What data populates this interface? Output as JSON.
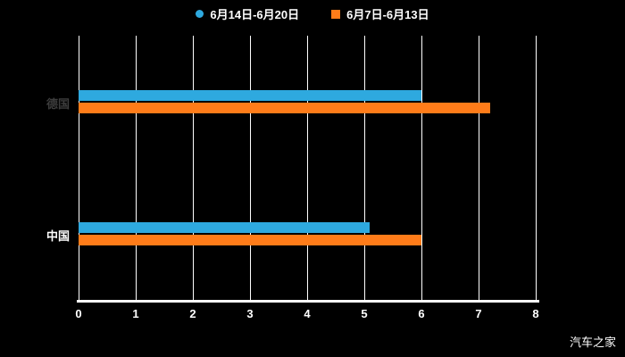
{
  "chart_data": {
    "type": "bar",
    "orientation": "horizontal",
    "title": "",
    "categories": [
      "德国",
      "中国"
    ],
    "category_label_colors": [
      "#3d3d3d",
      "#ffffff"
    ],
    "series": [
      {
        "name": "6月14日-6月20日",
        "marker": "circle",
        "color": "#2EA9DF",
        "values": [
          6.0,
          5.1
        ]
      },
      {
        "name": "6月7日-6月13日",
        "marker": "square",
        "color": "#FF7C19",
        "values": [
          7.2,
          6.0
        ]
      }
    ],
    "xlim": [
      0,
      8
    ],
    "xtick_labels": [
      "0",
      "1",
      "2",
      "3",
      "4",
      "5",
      "6",
      "7",
      "8"
    ],
    "grid": "vertical-only",
    "legend_position": "top-center",
    "background_color": "#000000",
    "gridline_color": "#ffffff",
    "axis_color": "#ffffff",
    "tick_label_color": "#ffffff"
  },
  "watermark": "汽车之家"
}
